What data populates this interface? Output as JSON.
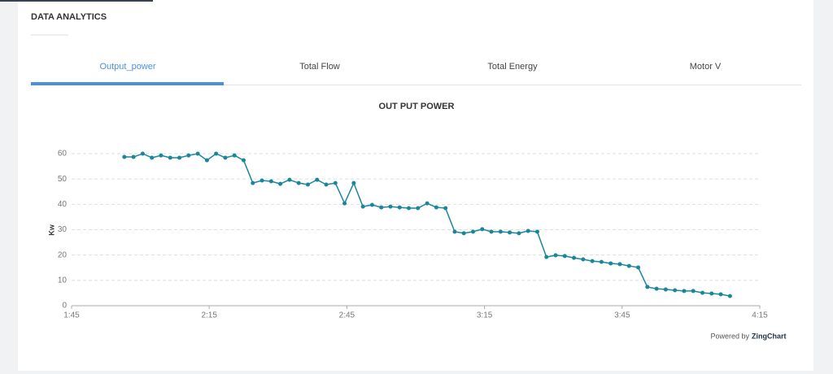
{
  "header": {
    "title": "DATA ANALYTICS"
  },
  "tabs": [
    "Output_power",
    "Total Flow",
    "Total Energy",
    "Motor V"
  ],
  "footer": {
    "powered_by": "Powered by",
    "brand": "ZingChart"
  },
  "chart_data": {
    "type": "line",
    "title": "OUT PUT POWER",
    "y_label": "Kw",
    "color": "#19869a",
    "grid": true,
    "xlim": [
      105,
      255
    ],
    "xticks": [
      {
        "value": 105,
        "label": "1:45"
      },
      {
        "value": 135,
        "label": "2:15"
      },
      {
        "value": 165,
        "label": "2:45"
      },
      {
        "value": 195,
        "label": "3:15"
      },
      {
        "value": 225,
        "label": "3:45"
      },
      {
        "value": 255,
        "label": "4:15"
      }
    ],
    "ylim": [
      0,
      60
    ],
    "yticks": [
      0,
      10,
      20,
      30,
      40,
      50,
      60
    ],
    "x": [
      116.5,
      118.5,
      120.5,
      122.5,
      124.5,
      126.5,
      128.5,
      130.5,
      132.5,
      134.5,
      136.5,
      138.5,
      140.5,
      142.5,
      144.5,
      146.5,
      148.5,
      150.5,
      152.5,
      154.5,
      156.5,
      158.5,
      160.5,
      162.5,
      164.5,
      166.5,
      168.5,
      170.5,
      172.5,
      174.5,
      176.5,
      178.5,
      180.5,
      182.5,
      184.5,
      186.5,
      188.5,
      190.5,
      192.5,
      194.5,
      196.5,
      198.5,
      200.5,
      202.5,
      204.5,
      206.5,
      208.5,
      210.5,
      212.5,
      214.5,
      216.5,
      218.5,
      220.5,
      222.5,
      224.5,
      226.5,
      228.5,
      230.5,
      232.5,
      234.5,
      236.5,
      238.5,
      240.5,
      242.5,
      244.5,
      246.5,
      248.5
    ],
    "series": [
      {
        "name": "Output_power",
        "values": [
          58.7,
          58.7,
          60,
          58.4,
          59.3,
          58.4,
          58.4,
          59.3,
          60,
          57.4,
          60,
          58.4,
          59.3,
          57.4,
          48.4,
          49.4,
          49.1,
          48.1,
          49.7,
          48.4,
          47.8,
          49.7,
          47.8,
          48.4,
          40.4,
          48.4,
          39.1,
          39.8,
          38.8,
          39.1,
          38.8,
          38.5,
          38.5,
          40.4,
          38.8,
          38.5,
          29.2,
          28.6,
          29.2,
          30.2,
          29.2,
          29.2,
          28.9,
          28.6,
          29.5,
          29.2,
          19.2,
          19.9,
          19.6,
          18.9,
          18.3,
          17.6,
          17.3,
          16.7,
          16.4,
          15.7,
          15.1,
          7.4,
          6.7,
          6.4,
          6.1,
          5.8,
          5.8,
          5.1,
          4.8,
          4.5,
          3.8
        ]
      }
    ]
  }
}
